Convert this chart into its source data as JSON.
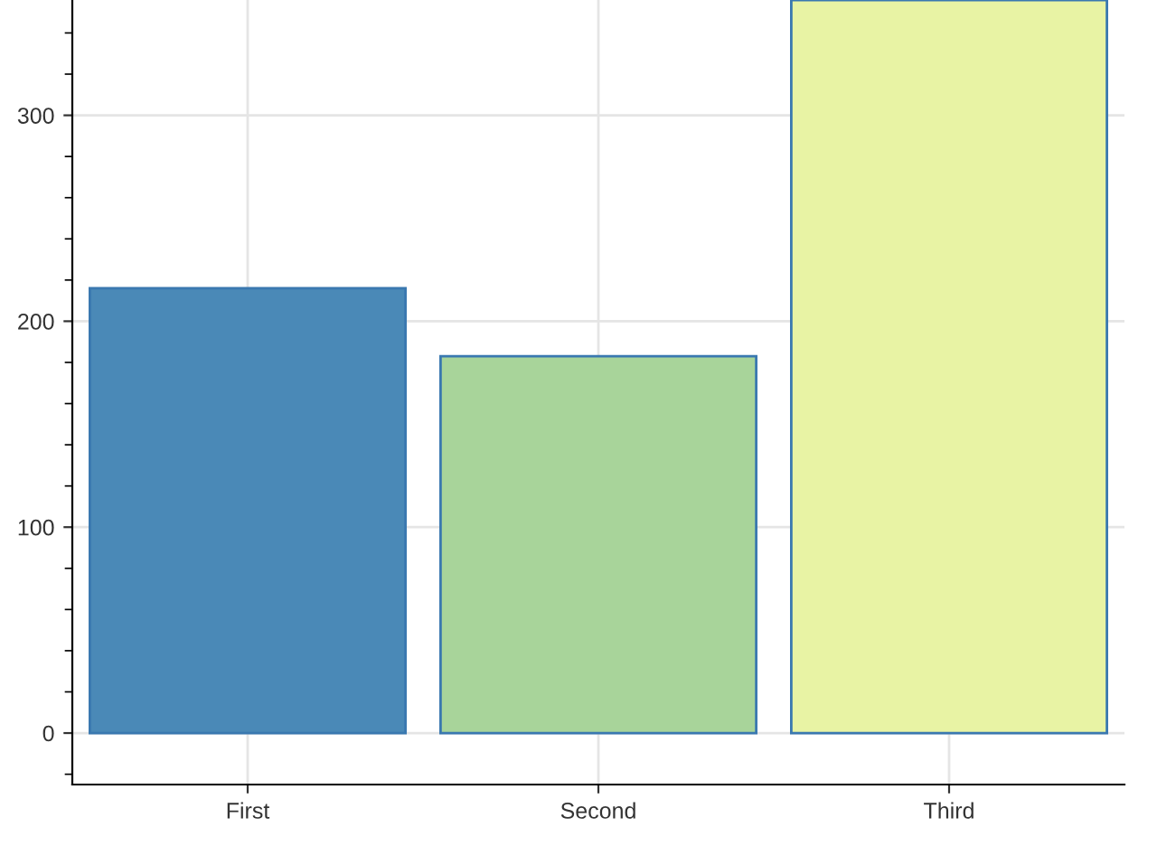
{
  "chart_data": {
    "type": "bar",
    "categories": [
      "First",
      "Second",
      "Third"
    ],
    "values": [
      216,
      183,
      356
    ],
    "colors": [
      "#4a89b7",
      "#a8d49a",
      "#e8f3a4"
    ],
    "ylim": [
      -25,
      356
    ],
    "yticks": [
      0,
      100,
      200,
      300
    ],
    "grid": true
  }
}
